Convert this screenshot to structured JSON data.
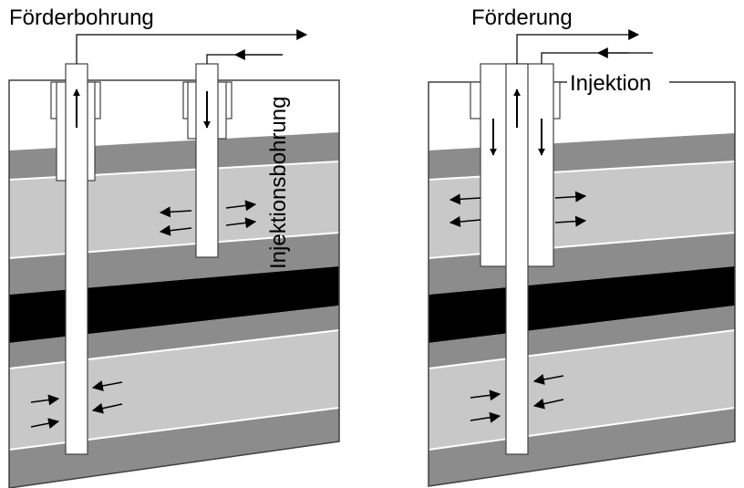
{
  "left_diagram": {
    "label_production": "Förderbohrung",
    "label_injection": "Injektionsbohrung"
  },
  "right_diagram": {
    "label_production": "Förderung",
    "label_injection": "Injektion"
  },
  "colors": {
    "dark_layer": "#8c8c8c",
    "light_layer": "#c8c8c8",
    "black_layer": "#000000",
    "top_layer": "#ffffff",
    "layer_separator": "#ffffff",
    "outline": "#404040"
  }
}
